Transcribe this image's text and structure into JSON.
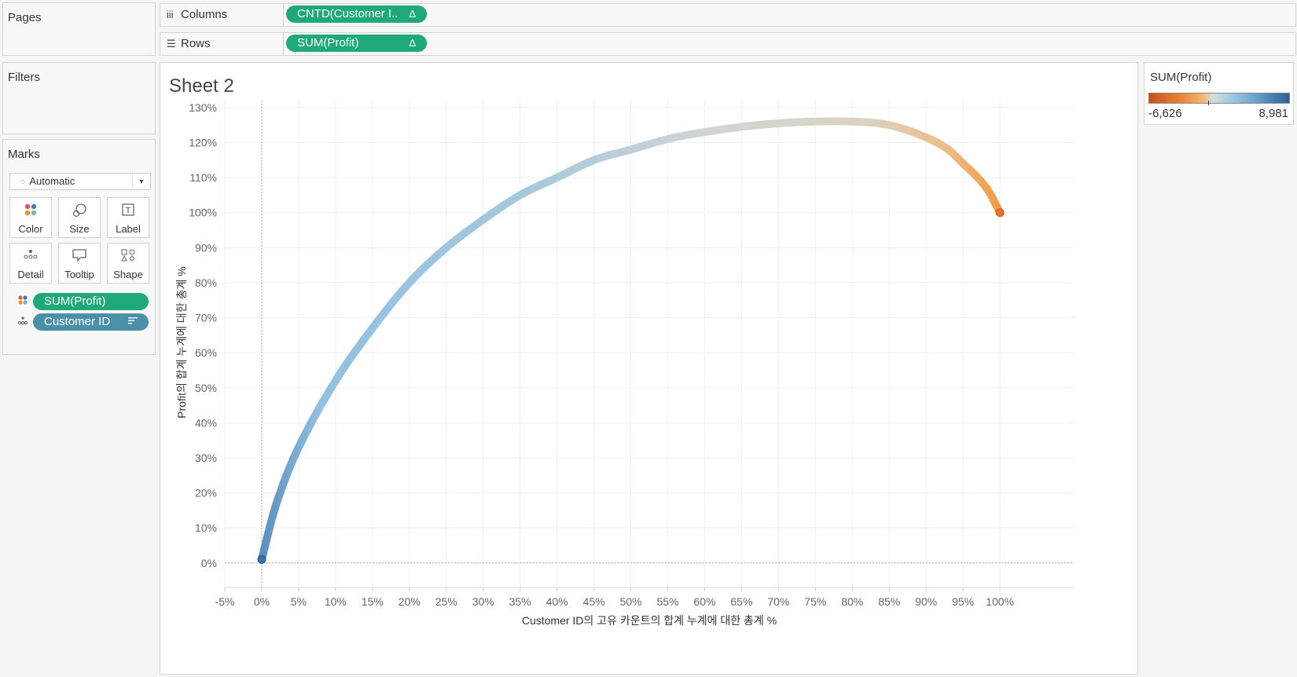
{
  "cards": {
    "pages": "Pages",
    "filters": "Filters",
    "marks": "Marks"
  },
  "shelves": {
    "columns_label": "Columns",
    "columns_pill": "CNTD(Customer I..",
    "rows_label": "Rows",
    "rows_pill": "SUM(Profit)",
    "delta_symbol": "Δ"
  },
  "marks": {
    "mark_type": "Automatic",
    "buttons": [
      "Color",
      "Size",
      "Label",
      "Detail",
      "Tooltip",
      "Shape"
    ],
    "pills": [
      {
        "label": "SUM(Profit)",
        "encoding": "color"
      },
      {
        "label": "Customer ID",
        "encoding": "detail"
      }
    ]
  },
  "sheet": {
    "title": "Sheet 2"
  },
  "legend": {
    "title": "SUM(Profit)",
    "min": "-6,626",
    "max": "8,981"
  },
  "chart_data": {
    "type": "line",
    "title": "",
    "xlabel": "Customer ID의 고유 카운트의 합계 누계에 대한 총계 %",
    "ylabel": "Profit의 합계 누계에 대한 총계 %",
    "xlim": [
      -5,
      110
    ],
    "ylim": [
      -7,
      132
    ],
    "x_ticks": [
      "-5%",
      "0%",
      "5%",
      "10%",
      "15%",
      "20%",
      "25%",
      "30%",
      "35%",
      "40%",
      "45%",
      "50%",
      "55%",
      "60%",
      "65%",
      "70%",
      "75%",
      "80%",
      "85%",
      "90%",
      "95%",
      "100%"
    ],
    "y_ticks": [
      "0%",
      "10%",
      "20%",
      "30%",
      "40%",
      "50%",
      "60%",
      "70%",
      "80%",
      "90%",
      "100%",
      "110%",
      "120%",
      "130%"
    ],
    "series": [
      {
        "x": [
          0,
          2,
          5,
          10,
          15,
          20,
          25,
          30,
          35,
          40,
          45,
          50,
          55,
          60,
          65,
          70,
          75,
          80,
          85,
          90,
          93,
          95,
          97,
          98.5,
          100
        ],
        "y": [
          1,
          17,
          33,
          52,
          67,
          80,
          90,
          98,
          105,
          110,
          115,
          118,
          121,
          123,
          124.5,
          125.5,
          126,
          126,
          125,
          121.5,
          118,
          114,
          110,
          106,
          100
        ]
      }
    ],
    "grid": true
  }
}
